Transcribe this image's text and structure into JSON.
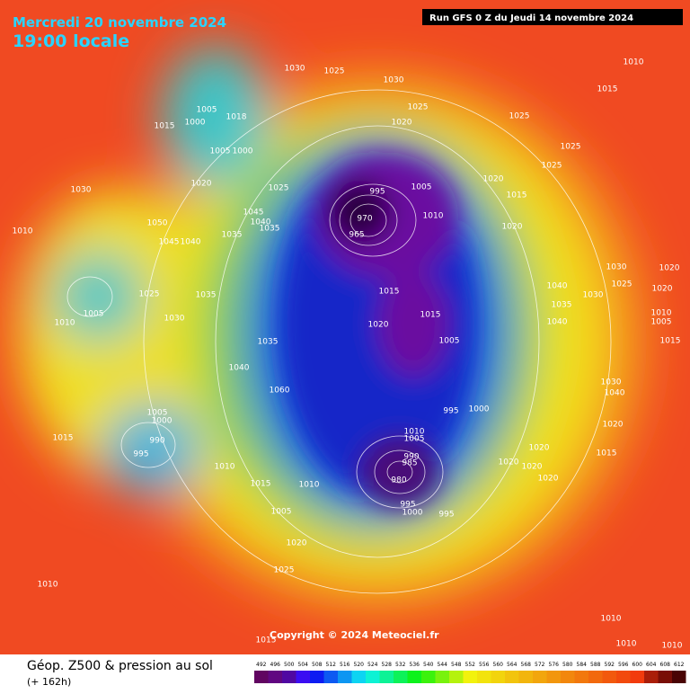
{
  "header": {
    "title": "Mercredi 20 novembre 2024",
    "subtitle": "19:00 locale",
    "run": "Run GFS 0 Z du Jeudi 14 novembre 2024"
  },
  "map": {
    "copyright": "Copyright © 2024 Meteociel.fr",
    "isobar_labels": [
      "1030",
      "1025",
      "1010",
      "1015",
      "1030",
      "1005",
      "1018",
      "1000",
      "1015",
      "1025",
      "1025",
      "1020",
      "1025",
      "1005",
      "1000",
      "1025",
      "1020",
      "1030",
      "1025",
      "1020",
      "1015",
      "995",
      "1005",
      "1010",
      "1045",
      "1040",
      "1050",
      "1010",
      "1035",
      "965",
      "970",
      "1020",
      "1035",
      "1045",
      "1040",
      "1030",
      "1020",
      "1025",
      "1020",
      "1025",
      "1035",
      "1040",
      "1015",
      "1030",
      "1005",
      "1035",
      "1015",
      "1010",
      "1030",
      "1020",
      "1040",
      "1010",
      "1005",
      "1015",
      "1005",
      "1035",
      "1040",
      "1030",
      "1060",
      "1040",
      "995",
      "1000",
      "1005",
      "1000",
      "1020",
      "1010",
      "1005",
      "1015",
      "990",
      "1020",
      "995",
      "1015",
      "990",
      "985",
      "1020",
      "1020",
      "1010",
      "980",
      "1015",
      "1020",
      "1010",
      "995",
      "1005",
      "1000",
      "995",
      "1020",
      "1025",
      "1010",
      "1010",
      "1010",
      "1010",
      "1015"
    ]
  },
  "footer": {
    "title": "Géop. Z500 & pression au sol",
    "lead": "(+ 162h)",
    "scale": [
      492,
      496,
      500,
      504,
      508,
      512,
      516,
      520,
      524,
      528,
      532,
      536,
      540,
      544,
      548,
      552,
      556,
      560,
      564,
      568,
      572,
      576,
      580,
      584,
      588,
      592,
      596,
      600,
      604,
      608,
      612
    ]
  }
}
